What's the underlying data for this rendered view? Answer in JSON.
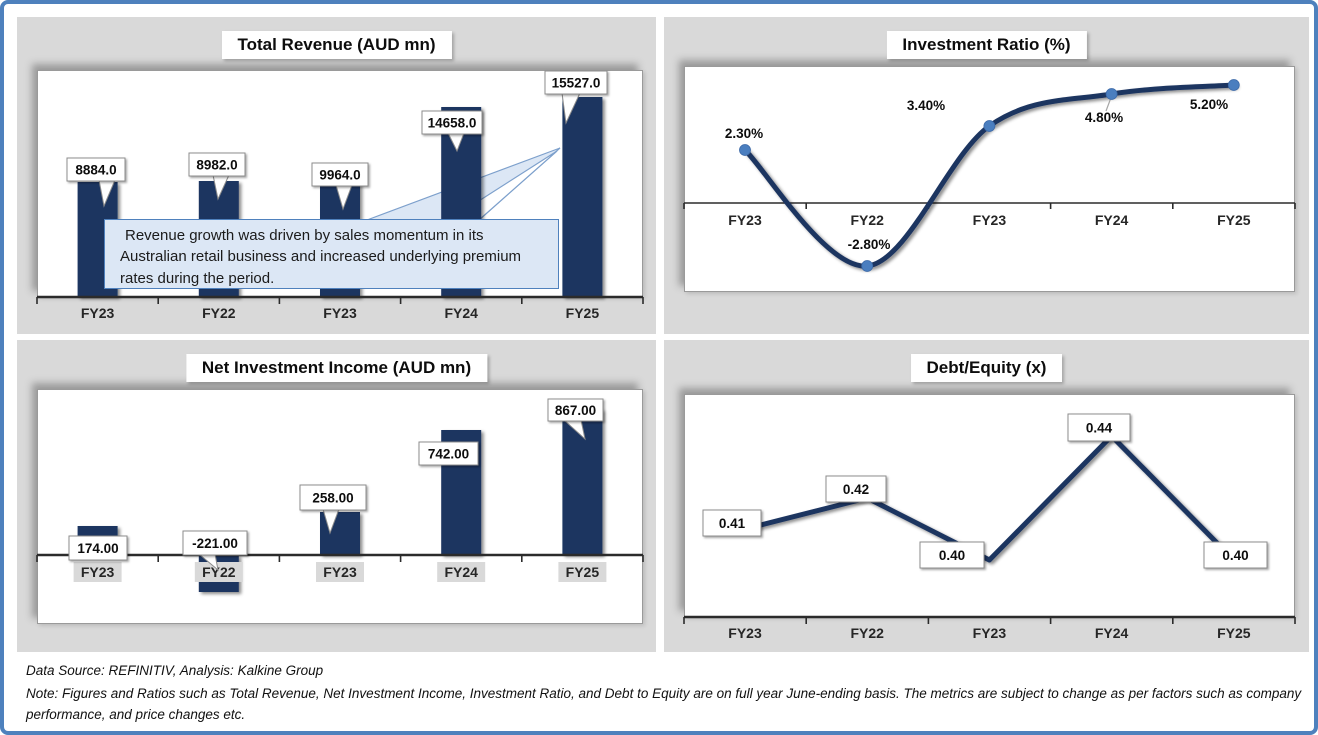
{
  "frame": {
    "border_color": "#4E81BD",
    "panel_color": "#D9D9D9",
    "bar_color": "#1C3461",
    "line_color": "#1C3461",
    "marker_color": "#4A7EBF",
    "callout_bg": "#DCE7F5",
    "callout_border": "#4F81BD"
  },
  "chart_data": [
    {
      "type": "bar",
      "title": "Total Revenue (AUD mn)",
      "categories": [
        "FY23",
        "FY22",
        "FY23",
        "FY24",
        "FY25"
      ],
      "values": [
        8884.0,
        8982.0,
        9964.0,
        14658.0,
        15527.0
      ],
      "value_labels": [
        "8884.0",
        "8982.0",
        "9964.0",
        "14658.0",
        "15527.0"
      ],
      "ylim": [
        0,
        17500
      ],
      "grid": "off",
      "annotation": "Revenue growth was driven by sales momentum in its Australian retail business and increased underlying premium rates during the period."
    },
    {
      "type": "line",
      "title": "Investment Ratio (%)",
      "categories": [
        "FY23",
        "FY22",
        "FY23",
        "FY24",
        "FY25"
      ],
      "values": [
        2.3,
        -2.8,
        3.4,
        4.8,
        5.2
      ],
      "value_labels": [
        "2.30%",
        "-2.80%",
        "3.40%",
        "4.80%",
        "5.20%"
      ],
      "ylim": [
        -4.2,
        6.2
      ],
      "grid": "off",
      "line_style": "smooth",
      "markers": "on"
    },
    {
      "type": "bar",
      "title": "Net Investment Income (AUD mn)",
      "categories": [
        "FY23",
        "FY22",
        "FY23",
        "FY24",
        "FY25"
      ],
      "values": [
        174.0,
        -221.0,
        258.0,
        742.0,
        867.0
      ],
      "value_labels": [
        "174.00",
        "-221.00",
        "258.00",
        "742.00",
        "867.00"
      ],
      "ylim": [
        -400,
        1000
      ],
      "grid": "off"
    },
    {
      "type": "line",
      "title": "Debt/Equity (x)",
      "categories": [
        "FY23",
        "FY22",
        "FY23",
        "FY24",
        "FY25"
      ],
      "values": [
        0.41,
        0.42,
        0.4,
        0.44,
        0.4
      ],
      "value_labels": [
        "0.41",
        "0.42",
        "0.40",
        "0.44",
        "0.40"
      ],
      "ylim": [
        0.37,
        0.46
      ],
      "grid": "off",
      "line_style": "straight",
      "markers": "off"
    }
  ],
  "footer": {
    "source_line": "Data Source: REFINITIV, Analysis: Kalkine Group",
    "note_line": "Note: Figures and Ratios such as Total Revenue, Net Investment Income, Investment Ratio, and Debt to Equity are on full year June-ending basis. The metrics are subject to change as per factors such as company performance, and price changes etc."
  }
}
